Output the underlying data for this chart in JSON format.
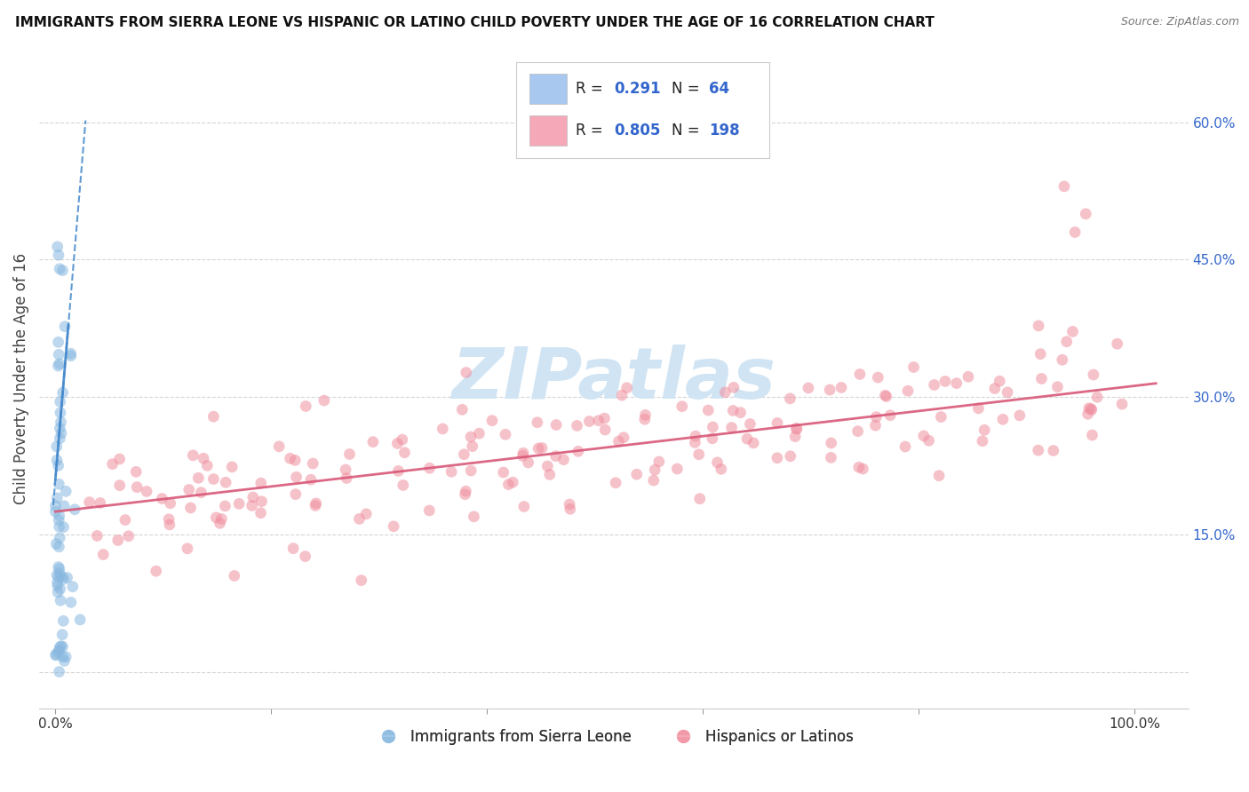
{
  "title": "IMMIGRANTS FROM SIERRA LEONE VS HISPANIC OR LATINO CHILD POVERTY UNDER THE AGE OF 16 CORRELATION CHART",
  "source": "Source: ZipAtlas.com",
  "ylabel": "Child Poverty Under the Age of 16",
  "legend_color_1": "#a8c8f0",
  "legend_color_2": "#f4a8b8",
  "scatter_color_blue": "#88b8e0",
  "scatter_color_pink": "#f090a0",
  "trendline_color_blue": "#4488cc",
  "trendline_color_pink": "#d85878",
  "watermark": "ZIPatlas",
  "watermark_color": "#d0e4f4",
  "legend_label_blue": "Immigrants from Sierra Leone",
  "legend_label_pink": "Hispanics or Latinos",
  "R_blue": "0.291",
  "N_blue": "64",
  "R_pink": "0.805",
  "N_pink": "198",
  "y_tick_color": "#3366cc",
  "x_tick_color": "#333333"
}
